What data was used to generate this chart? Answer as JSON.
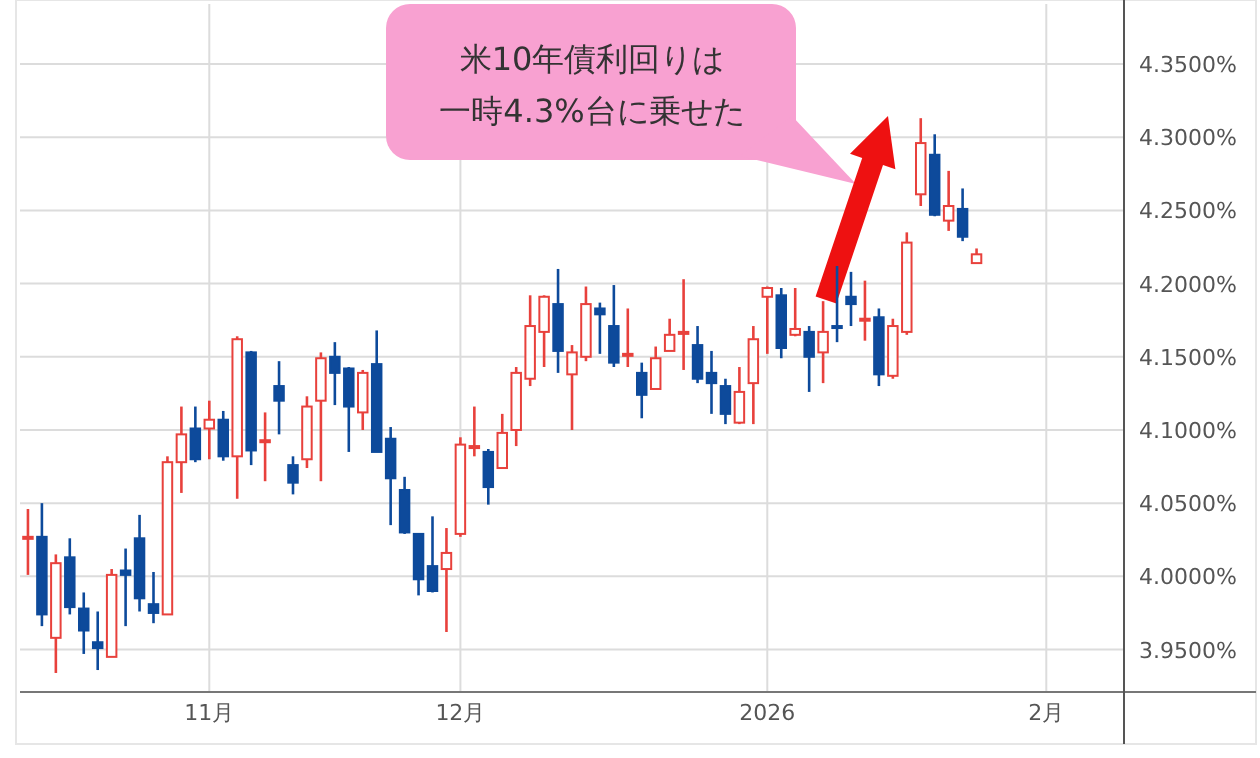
{
  "chart_data": {
    "type": "candlestick",
    "categories": [
      null,
      null,
      null,
      null,
      null,
      null,
      null,
      null,
      null,
      null,
      null,
      null,
      null,
      "11月",
      null,
      null,
      null,
      null,
      null,
      null,
      null,
      null,
      null,
      null,
      null,
      null,
      null,
      null,
      null,
      null,
      null,
      "12月",
      null,
      null,
      null,
      null,
      null,
      null,
      null,
      null,
      null,
      null,
      null,
      null,
      null,
      null,
      null,
      null,
      null,
      null,
      null,
      null,
      null,
      "2026",
      null,
      null,
      null,
      null,
      null,
      null,
      null,
      null,
      null,
      null,
      null,
      null,
      null,
      null,
      null,
      null,
      null,
      null,
      null,
      "2月",
      null,
      null,
      null,
      null,
      null
    ],
    "ohlc": [
      [
        4.027,
        4.046,
        4.001,
        4.027
      ],
      [
        4.027,
        4.05,
        3.966,
        3.974
      ],
      [
        3.958,
        4.015,
        3.934,
        4.009
      ],
      [
        4.013,
        4.026,
        3.974,
        3.979
      ],
      [
        3.978,
        3.989,
        3.947,
        3.963
      ],
      [
        3.955,
        3.976,
        3.936,
        3.951
      ],
      [
        3.945,
        4.005,
        3.945,
        4.001
      ],
      [
        4.004,
        4.019,
        3.966,
        4.001
      ],
      [
        4.026,
        4.042,
        3.976,
        3.985
      ],
      [
        3.981,
        4.003,
        3.968,
        3.975
      ],
      [
        3.974,
        4.082,
        3.974,
        4.078
      ],
      [
        4.078,
        4.116,
        4.057,
        4.097
      ],
      [
        4.101,
        4.116,
        4.078,
        4.08
      ],
      [
        4.101,
        4.12,
        4.08,
        4.107
      ],
      [
        4.107,
        4.113,
        4.079,
        4.082
      ],
      [
        4.082,
        4.164,
        4.053,
        4.162
      ],
      [
        4.153,
        4.154,
        4.076,
        4.086
      ],
      [
        4.093,
        4.112,
        4.065,
        4.093
      ],
      [
        4.13,
        4.147,
        4.097,
        4.12
      ],
      [
        4.076,
        4.082,
        4.056,
        4.064
      ],
      [
        4.08,
        4.123,
        4.074,
        4.116
      ],
      [
        4.12,
        4.153,
        4.065,
        4.149
      ],
      [
        4.15,
        4.16,
        4.117,
        4.139
      ],
      [
        4.142,
        4.143,
        4.085,
        4.116
      ],
      [
        4.112,
        4.141,
        4.1,
        4.139
      ],
      [
        4.145,
        4.168,
        4.085,
        4.085
      ],
      [
        4.094,
        4.102,
        4.035,
        4.067
      ],
      [
        4.059,
        4.068,
        4.029,
        4.03
      ],
      [
        4.029,
        4.029,
        3.987,
        3.998
      ],
      [
        4.007,
        4.041,
        3.989,
        3.99
      ],
      [
        4.005,
        4.033,
        3.962,
        4.016
      ],
      [
        4.029,
        4.095,
        4.027,
        4.09
      ],
      [
        4.089,
        4.116,
        4.082,
        4.089
      ],
      [
        4.085,
        4.087,
        4.049,
        4.061
      ],
      [
        4.074,
        4.111,
        4.074,
        4.098
      ],
      [
        4.1,
        4.143,
        4.089,
        4.139
      ],
      [
        4.135,
        4.192,
        4.13,
        4.171
      ],
      [
        4.167,
        4.192,
        4.143,
        4.191
      ],
      [
        4.186,
        4.21,
        4.139,
        4.154
      ],
      [
        4.138,
        4.158,
        4.1,
        4.153
      ],
      [
        4.15,
        4.198,
        4.147,
        4.186
      ],
      [
        4.183,
        4.187,
        4.152,
        4.179
      ],
      [
        4.171,
        4.199,
        4.143,
        4.146
      ],
      [
        4.152,
        4.183,
        4.143,
        4.152
      ],
      [
        4.139,
        4.146,
        4.108,
        4.124
      ],
      [
        4.128,
        4.157,
        4.128,
        4.149
      ],
      [
        4.154,
        4.176,
        4.154,
        4.165
      ],
      [
        4.167,
        4.203,
        4.141,
        4.167
      ],
      [
        4.158,
        4.171,
        4.132,
        4.135
      ],
      [
        4.139,
        4.154,
        4.111,
        4.132
      ],
      [
        4.13,
        4.135,
        4.104,
        4.111
      ],
      [
        4.105,
        4.143,
        4.104,
        4.126
      ],
      [
        4.132,
        4.171,
        4.104,
        4.162
      ],
      [
        4.191,
        4.198,
        4.152,
        4.197
      ],
      [
        4.192,
        4.197,
        4.149,
        4.156
      ],
      [
        4.165,
        4.197,
        4.164,
        4.169
      ],
      [
        4.167,
        4.171,
        4.126,
        4.15
      ],
      [
        4.153,
        4.188,
        4.132,
        4.167
      ],
      [
        4.171,
        4.212,
        4.16,
        4.171
      ],
      [
        4.191,
        4.208,
        4.171,
        4.186
      ],
      [
        4.176,
        4.202,
        4.161,
        4.176
      ],
      [
        4.177,
        4.183,
        4.13,
        4.138
      ],
      [
        4.137,
        4.176,
        4.135,
        4.171
      ],
      [
        4.167,
        4.235,
        4.165,
        4.228
      ],
      [
        4.261,
        4.313,
        4.253,
        4.296
      ],
      [
        4.288,
        4.302,
        4.246,
        4.247
      ],
      [
        4.243,
        4.277,
        4.236,
        4.253
      ],
      [
        4.251,
        4.265,
        4.229,
        4.232
      ],
      [
        4.214,
        4.224,
        4.214,
        4.22
      ],
      null,
      null,
      null,
      null,
      null,
      null,
      null,
      null,
      null,
      null
    ],
    "colors": [
      "#e8413c",
      "#0d4a9b",
      "#e8413c",
      "#0d4a9b",
      "#0d4a9b",
      "#0d4a9b",
      "#e8413c",
      "#0d4a9b",
      "#0d4a9b",
      "#0d4a9b",
      "#e8413c",
      "#e8413c",
      "#0d4a9b",
      "#e8413c",
      "#0d4a9b",
      "#e8413c",
      "#0d4a9b",
      "#e8413c",
      "#0d4a9b",
      "#0d4a9b",
      "#e8413c",
      "#e8413c",
      "#0d4a9b",
      "#0d4a9b",
      "#e8413c",
      "#0d4a9b",
      "#0d4a9b",
      "#0d4a9b",
      "#0d4a9b",
      "#0d4a9b",
      "#e8413c",
      "#e8413c",
      "#e8413c",
      "#0d4a9b",
      "#e8413c",
      "#e8413c",
      "#e8413c",
      "#e8413c",
      "#0d4a9b",
      "#e8413c",
      "#e8413c",
      "#0d4a9b",
      "#0d4a9b",
      "#e8413c",
      "#0d4a9b",
      "#e8413c",
      "#e8413c",
      "#e8413c",
      "#0d4a9b",
      "#0d4a9b",
      "#0d4a9b",
      "#e8413c",
      "#e8413c",
      "#e8413c",
      "#0d4a9b",
      "#e8413c",
      "#0d4a9b",
      "#e8413c",
      "#0d4a9b",
      "#0d4a9b",
      "#e8413c",
      "#0d4a9b",
      "#e8413c",
      "#e8413c",
      "#e8413c",
      "#0d4a9b",
      "#e8413c",
      "#0d4a9b",
      "#e8413c",
      null,
      null,
      null,
      null,
      null,
      null,
      null,
      null,
      null,
      null
    ],
    "ylim": [
      3.921,
      4.391
    ],
    "yticks": [
      {
        "value": 3.95,
        "label": "3.9500%"
      },
      {
        "value": 4.0,
        "label": "4.0000%"
      },
      {
        "value": 4.05,
        "label": "4.0500%"
      },
      {
        "value": 4.1,
        "label": "4.1000%"
      },
      {
        "value": 4.15,
        "label": "4.1500%"
      },
      {
        "value": 4.2,
        "label": "4.2000%"
      },
      {
        "value": 4.25,
        "label": "4.2500%"
      },
      {
        "value": 4.3,
        "label": "4.3000%"
      },
      {
        "value": 4.35,
        "label": "4.3500%"
      }
    ],
    "grid": true,
    "annotations": [
      "米10年債利回りは",
      "一時4.3%台に乗せた"
    ]
  }
}
